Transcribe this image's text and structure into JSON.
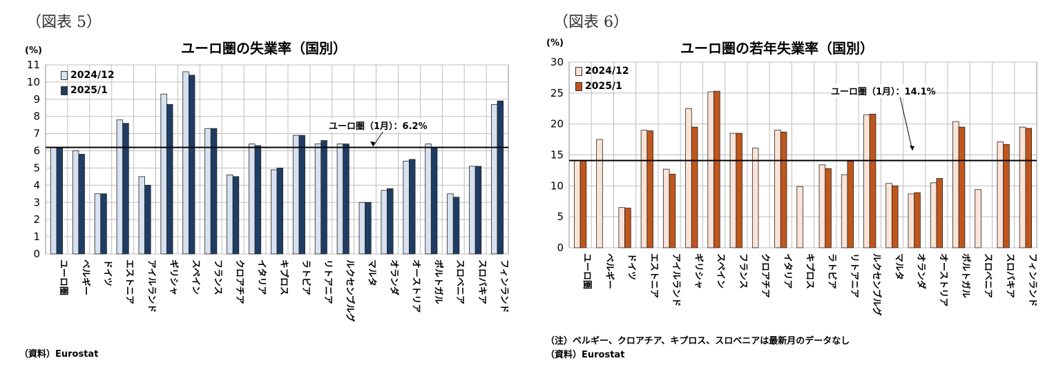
{
  "left": {
    "figure_label": "（図表 5）",
    "title": "ユーロ圏の失業率（国別）",
    "unit": "(%)",
    "legend": [
      "2024/12",
      "2025/1"
    ],
    "annotation": "ユーロ圏（1月）：6.2%",
    "source": "（資料）Eurostat",
    "colors": {
      "series1": "#d7e1f0",
      "series2": "#1f3d64",
      "line": "#000000"
    }
  },
  "right": {
    "figure_label": "（図表 6）",
    "title": "ユーロ圏の若年失業率（国別）",
    "unit": "(%)",
    "legend": [
      "2024/12",
      "2025/1"
    ],
    "annotation": "ユーロ圏（1月）：14.1%",
    "notes": "（注）ベルギー、クロアチア、キプロス、スロベニアは最新月のデータなし",
    "source": "（資料）Eurostat",
    "colors": {
      "series1": "#fbe3d6",
      "series2": "#c0561c",
      "line": "#000000"
    }
  },
  "chart_data": [
    {
      "type": "bar",
      "title": "ユーロ圏の失業率（国別）",
      "ylabel": "(%)",
      "ylim": [
        0,
        11
      ],
      "yticks": [
        0,
        1,
        2,
        3,
        4,
        5,
        6,
        7,
        8,
        9,
        10,
        11
      ],
      "categories": [
        "ユーロ圏",
        "ベルギー",
        "ドイツ",
        "エストニア",
        "アイルランド",
        "ギリシャ",
        "スペイン",
        "フランス",
        "クロアチア",
        "イタリア",
        "キプロス",
        "ラトビア",
        "リトアニア",
        "ルクセンブルグ",
        "マルタ",
        "オランダ",
        "オーストリア",
        "ポルトガル",
        "スロベニア",
        "スロバキア",
        "フィンランド"
      ],
      "series": [
        {
          "name": "2024/12",
          "values": [
            6.2,
            6.0,
            3.5,
            7.8,
            4.5,
            9.3,
            10.6,
            7.3,
            4.6,
            6.4,
            4.9,
            6.9,
            6.4,
            6.4,
            3.0,
            3.7,
            5.4,
            6.4,
            3.5,
            5.1,
            8.7
          ]
        },
        {
          "name": "2025/1",
          "values": [
            6.2,
            5.8,
            3.5,
            7.6,
            4.0,
            8.7,
            10.4,
            7.3,
            4.5,
            6.3,
            5.0,
            6.9,
            6.6,
            6.4,
            3.0,
            3.8,
            5.5,
            6.2,
            3.3,
            5.1,
            8.9
          ]
        }
      ],
      "reference_line": 6.2,
      "grid": true,
      "legend_position": "top-left"
    },
    {
      "type": "bar",
      "title": "ユーロ圏の若年失業率（国別）",
      "ylabel": "(%)",
      "ylim": [
        0,
        30
      ],
      "yticks": [
        0,
        5,
        10,
        15,
        20,
        25,
        30
      ],
      "categories": [
        "ユーロ圏",
        "ベルギー",
        "ドイツ",
        "エストニア",
        "アイルランド",
        "ギリシャ",
        "スペイン",
        "フランス",
        "クロアチア",
        "イタリア",
        "キプロス",
        "ラトビア",
        "リトアニア",
        "ルクセンブルグ",
        "マルタ",
        "オランダ",
        "オーストリア",
        "ポルトガル",
        "スロベニア",
        "スロバキア",
        "フィンランド"
      ],
      "series": [
        {
          "name": "2024/12",
          "values": [
            14.1,
            17.5,
            6.5,
            19.0,
            12.7,
            22.5,
            25.2,
            18.5,
            16.1,
            19.0,
            9.9,
            13.4,
            11.8,
            21.5,
            10.4,
            8.7,
            10.5,
            20.4,
            9.4,
            17.1,
            19.5
          ]
        },
        {
          "name": "2025/1",
          "values": [
            14.1,
            null,
            6.4,
            18.9,
            11.9,
            19.5,
            25.3,
            18.5,
            null,
            18.7,
            null,
            12.8,
            14.0,
            21.6,
            10.0,
            8.9,
            11.2,
            19.5,
            null,
            16.7,
            19.3
          ]
        }
      ],
      "reference_line": 14.1,
      "grid": true,
      "legend_position": "top-left"
    }
  ]
}
